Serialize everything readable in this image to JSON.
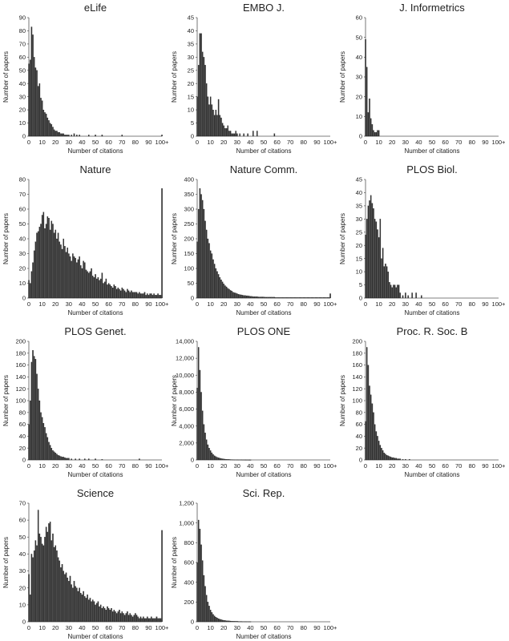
{
  "chart_data": [
    {
      "type": "bar",
      "title": "eLife",
      "xlabel": "Number of citations",
      "ylabel": "Number of papers",
      "ylim": [
        0,
        90
      ],
      "yticks": [
        "0",
        "10",
        "20",
        "30",
        "40",
        "50",
        "60",
        "70",
        "80",
        "90"
      ],
      "xticks": [
        "0",
        "10",
        "20",
        "30",
        "40",
        "50",
        "60",
        "70",
        "80",
        "90",
        "100+"
      ],
      "x": [
        0,
        1,
        2,
        3,
        4,
        5,
        6,
        7,
        8,
        9,
        10,
        11,
        12,
        13,
        14,
        15,
        16,
        17,
        18,
        19,
        20,
        21,
        22,
        23,
        24,
        25,
        26,
        27,
        28,
        29,
        30,
        32,
        34,
        36,
        38,
        45,
        50,
        55,
        70,
        100
      ],
      "values": [
        55,
        58,
        83,
        77,
        60,
        52,
        50,
        38,
        40,
        29,
        27,
        20,
        18,
        17,
        14,
        12,
        10,
        9,
        7,
        5,
        4,
        4,
        3,
        3,
        2,
        2,
        2,
        1,
        1,
        1,
        1,
        1,
        2,
        1,
        1,
        1,
        1,
        1,
        1,
        1
      ]
    },
    {
      "type": "bar",
      "title": "EMBO J.",
      "xlabel": "Number of citations",
      "ylabel": "Number of papers",
      "ylim": [
        0,
        45
      ],
      "yticks": [
        "0",
        "5",
        "10",
        "15",
        "20",
        "25",
        "30",
        "35",
        "40",
        "45"
      ],
      "xticks": [
        "0",
        "10",
        "20",
        "30",
        "40",
        "50",
        "60",
        "70",
        "80",
        "90",
        "100+"
      ],
      "x": [
        0,
        1,
        2,
        3,
        4,
        5,
        6,
        7,
        8,
        9,
        10,
        11,
        12,
        13,
        14,
        15,
        16,
        17,
        18,
        19,
        20,
        21,
        22,
        23,
        24,
        25,
        26,
        27,
        28,
        29,
        30,
        32,
        35,
        38,
        42,
        45,
        58
      ],
      "values": [
        15,
        27,
        39,
        39,
        32,
        30,
        27,
        20,
        15,
        12,
        15,
        12,
        10,
        8,
        10,
        8,
        14,
        8,
        7,
        5,
        4,
        3,
        3,
        4,
        2,
        2,
        1,
        1,
        1,
        2,
        1,
        1,
        1,
        1,
        2,
        2,
        1
      ]
    },
    {
      "type": "bar",
      "title": "J. Informetrics",
      "xlabel": "Number of citations",
      "ylabel": "Number of papers",
      "ylim": [
        0,
        60
      ],
      "yticks": [
        "0",
        "10",
        "20",
        "30",
        "40",
        "50",
        "60"
      ],
      "xticks": [
        "0",
        "10",
        "20",
        "30",
        "40",
        "50",
        "60",
        "70",
        "80",
        "90",
        "100+"
      ],
      "x": [
        0,
        1,
        2,
        3,
        4,
        5,
        6,
        7,
        8,
        9,
        10
      ],
      "values": [
        49,
        35,
        12,
        19,
        9,
        6,
        3,
        2,
        2,
        3,
        3
      ]
    },
    {
      "type": "bar",
      "title": "Nature",
      "xlabel": "Number of citations",
      "ylabel": "Number of papers",
      "ylim": [
        0,
        80
      ],
      "yticks": [
        "0",
        "10",
        "20",
        "30",
        "40",
        "50",
        "60",
        "70",
        "80"
      ],
      "xticks": [
        "0",
        "10",
        "20",
        "30",
        "40",
        "50",
        "60",
        "70",
        "80",
        "90",
        "100+"
      ],
      "x": [
        0,
        1,
        2,
        3,
        4,
        5,
        6,
        7,
        8,
        9,
        10,
        11,
        12,
        13,
        14,
        15,
        16,
        17,
        18,
        19,
        20,
        21,
        22,
        23,
        24,
        25,
        26,
        27,
        28,
        29,
        30,
        31,
        32,
        33,
        34,
        35,
        36,
        37,
        38,
        39,
        40,
        41,
        42,
        43,
        44,
        45,
        46,
        47,
        48,
        49,
        50,
        51,
        52,
        53,
        54,
        55,
        56,
        57,
        58,
        59,
        60,
        61,
        62,
        63,
        64,
        65,
        66,
        67,
        68,
        69,
        70,
        71,
        72,
        73,
        74,
        75,
        76,
        77,
        78,
        79,
        80,
        81,
        82,
        83,
        84,
        85,
        86,
        87,
        88,
        89,
        90,
        91,
        92,
        93,
        94,
        95,
        96,
        97,
        98,
        99,
        100
      ],
      "values": [
        12,
        10,
        18,
        24,
        32,
        38,
        44,
        45,
        48,
        50,
        56,
        58,
        47,
        50,
        55,
        54,
        46,
        52,
        50,
        44,
        46,
        40,
        44,
        38,
        36,
        33,
        40,
        35,
        31,
        34,
        30,
        28,
        25,
        30,
        28,
        27,
        24,
        26,
        28,
        22,
        20,
        25,
        24,
        19,
        18,
        17,
        18,
        20,
        15,
        14,
        16,
        13,
        14,
        12,
        13,
        17,
        10,
        11,
        13,
        9,
        10,
        9,
        8,
        7,
        9,
        8,
        6,
        7,
        6,
        5,
        7,
        6,
        5,
        4,
        6,
        5,
        4,
        5,
        4,
        4,
        4,
        4,
        3,
        4,
        3,
        3,
        3,
        4,
        2,
        3,
        2,
        3,
        3,
        2,
        3,
        2,
        2,
        3,
        2,
        2,
        74
      ]
    },
    {
      "type": "bar",
      "title": "Nature Comm.",
      "xlabel": "Number of citations",
      "ylabel": "Number of papers",
      "ylim": [
        0,
        400
      ],
      "yticks": [
        "0",
        "50",
        "100",
        "150",
        "200",
        "250",
        "300",
        "350",
        "400"
      ],
      "xticks": [
        "0",
        "10",
        "20",
        "30",
        "40",
        "50",
        "60",
        "70",
        "80",
        "90",
        "100+"
      ],
      "x": [
        0,
        1,
        2,
        3,
        4,
        5,
        6,
        7,
        8,
        9,
        10,
        11,
        12,
        13,
        14,
        15,
        16,
        17,
        18,
        19,
        20,
        21,
        22,
        23,
        24,
        25,
        26,
        27,
        28,
        29,
        30,
        31,
        32,
        33,
        34,
        35,
        36,
        37,
        38,
        39,
        40,
        41,
        42,
        43,
        44,
        45,
        46,
        47,
        48,
        49,
        50,
        51,
        52,
        53,
        54,
        55,
        56,
        57,
        58,
        59,
        60,
        61,
        62,
        63,
        64,
        65,
        66,
        67,
        68,
        69,
        70,
        71,
        72,
        73,
        74,
        75,
        76,
        77,
        78,
        79,
        80,
        81,
        82,
        83,
        84,
        85,
        86,
        87,
        88,
        89,
        90,
        91,
        92,
        93,
        94,
        95,
        96,
        97,
        98,
        99,
        100
      ],
      "values": [
        190,
        300,
        370,
        350,
        330,
        300,
        260,
        230,
        200,
        185,
        160,
        150,
        130,
        115,
        100,
        90,
        80,
        70,
        62,
        55,
        48,
        42,
        38,
        33,
        30,
        26,
        24,
        20,
        18,
        17,
        15,
        13,
        12,
        11,
        10,
        9,
        9,
        8,
        8,
        7,
        6,
        6,
        5,
        5,
        5,
        5,
        4,
        4,
        4,
        4,
        4,
        3,
        3,
        3,
        3,
        3,
        3,
        3,
        3,
        2,
        2,
        2,
        2,
        2,
        2,
        2,
        2,
        2,
        2,
        2,
        2,
        2,
        2,
        2,
        2,
        2,
        2,
        2,
        2,
        2,
        2,
        2,
        2,
        2,
        2,
        2,
        2,
        2,
        2,
        2,
        2,
        2,
        2,
        2,
        2,
        2,
        2,
        2,
        2,
        2,
        15
      ]
    },
    {
      "type": "bar",
      "title": "PLOS Biol.",
      "xlabel": "Number of citations",
      "ylabel": "Number of papers",
      "ylim": [
        0,
        45
      ],
      "yticks": [
        "0",
        "5",
        "10",
        "15",
        "20",
        "25",
        "30",
        "35",
        "40",
        "45"
      ],
      "xticks": [
        "0",
        "10",
        "20",
        "30",
        "40",
        "50",
        "60",
        "70",
        "80",
        "90",
        "100+"
      ],
      "x": [
        0,
        1,
        2,
        3,
        4,
        5,
        6,
        7,
        8,
        9,
        10,
        11,
        12,
        13,
        14,
        15,
        16,
        17,
        18,
        19,
        20,
        21,
        22,
        23,
        24,
        25,
        26,
        28,
        30,
        32,
        35,
        38,
        42
      ],
      "values": [
        24,
        30,
        35,
        37,
        39,
        36,
        34,
        30,
        29,
        26,
        23,
        30,
        15,
        19,
        12,
        13,
        12,
        10,
        6,
        5,
        4,
        5,
        5,
        4,
        5,
        5,
        2,
        1,
        2,
        1,
        2,
        2,
        1
      ]
    },
    {
      "type": "bar",
      "title": "PLOS Genet.",
      "xlabel": "Number of citations",
      "ylabel": "Number of papers",
      "ylim": [
        0,
        200
      ],
      "yticks": [
        "0",
        "20",
        "40",
        "60",
        "80",
        "100",
        "120",
        "140",
        "160",
        "180",
        "200"
      ],
      "xticks": [
        "0",
        "10",
        "20",
        "30",
        "40",
        "50",
        "60",
        "70",
        "80",
        "90",
        "100+"
      ],
      "x": [
        0,
        1,
        2,
        3,
        4,
        5,
        6,
        7,
        8,
        9,
        10,
        11,
        12,
        13,
        14,
        15,
        16,
        17,
        18,
        19,
        20,
        21,
        22,
        23,
        24,
        25,
        26,
        27,
        28,
        29,
        30,
        32,
        35,
        38,
        42,
        45,
        50,
        55,
        83
      ],
      "values": [
        60,
        100,
        165,
        185,
        175,
        170,
        145,
        120,
        100,
        80,
        72,
        62,
        55,
        45,
        38,
        30,
        25,
        20,
        16,
        14,
        12,
        10,
        8,
        7,
        6,
        5,
        5,
        4,
        3,
        3,
        3,
        2,
        2,
        2,
        2,
        2,
        2,
        1,
        2
      ]
    },
    {
      "type": "bar",
      "title": "PLOS ONE",
      "xlabel": "Number of citations",
      "ylabel": "Number of papers",
      "ylim": [
        0,
        14000
      ],
      "yticks": [
        "0",
        "2,000",
        "4,000",
        "6,000",
        "8,000",
        "10,000",
        "12,000",
        "14,000"
      ],
      "xticks": [
        "0",
        "10",
        "20",
        "30",
        "40",
        "50",
        "60",
        "70",
        "80",
        "90",
        "100+"
      ],
      "x": [
        0,
        1,
        2,
        3,
        4,
        5,
        6,
        7,
        8,
        9,
        10,
        11,
        12,
        13,
        14,
        15,
        16,
        17,
        18,
        19,
        20,
        21,
        22,
        23,
        24,
        25,
        26,
        27,
        28,
        29,
        30,
        31,
        32,
        33,
        34,
        35,
        36,
        37,
        38,
        39,
        40
      ],
      "values": [
        8500,
        13300,
        10600,
        8000,
        5800,
        4200,
        3200,
        2400,
        1800,
        1400,
        1100,
        850,
        650,
        500,
        400,
        320,
        260,
        210,
        170,
        140,
        115,
        95,
        80,
        70,
        60,
        50,
        45,
        40,
        35,
        30,
        28,
        25,
        22,
        20,
        18,
        16,
        15,
        14,
        12,
        11,
        10
      ]
    },
    {
      "type": "bar",
      "title": "Proc. R. Soc. B",
      "xlabel": "Number of citations",
      "ylabel": "Number of papers",
      "ylim": [
        0,
        200
      ],
      "yticks": [
        "0",
        "20",
        "40",
        "60",
        "80",
        "100",
        "120",
        "140",
        "160",
        "180",
        "200"
      ],
      "xticks": [
        "0",
        "10",
        "20",
        "30",
        "40",
        "50",
        "60",
        "70",
        "80",
        "90",
        "100+"
      ],
      "x": [
        0,
        1,
        2,
        3,
        4,
        5,
        6,
        7,
        8,
        9,
        10,
        11,
        12,
        13,
        14,
        15,
        16,
        17,
        18,
        19,
        20,
        21,
        22,
        23,
        24,
        25,
        26,
        28,
        30,
        33
      ],
      "values": [
        65,
        190,
        160,
        125,
        110,
        95,
        80,
        60,
        48,
        40,
        32,
        25,
        20,
        16,
        12,
        10,
        8,
        7,
        6,
        5,
        4,
        4,
        3,
        3,
        2,
        2,
        2,
        1,
        1,
        1
      ]
    },
    {
      "type": "bar",
      "title": "Science",
      "xlabel": "Number of citations",
      "ylabel": "Number of papers",
      "ylim": [
        0,
        70
      ],
      "yticks": [
        "0",
        "10",
        "20",
        "30",
        "40",
        "50",
        "60",
        "70"
      ],
      "xticks": [
        "0",
        "10",
        "20",
        "30",
        "40",
        "50",
        "60",
        "70",
        "80",
        "90",
        "100+"
      ],
      "x": [
        0,
        1,
        2,
        3,
        4,
        5,
        6,
        7,
        8,
        9,
        10,
        11,
        12,
        13,
        14,
        15,
        16,
        17,
        18,
        19,
        20,
        21,
        22,
        23,
        24,
        25,
        26,
        27,
        28,
        29,
        30,
        31,
        32,
        33,
        34,
        35,
        36,
        37,
        38,
        39,
        40,
        41,
        42,
        43,
        44,
        45,
        46,
        47,
        48,
        49,
        50,
        51,
        52,
        53,
        54,
        55,
        56,
        57,
        58,
        59,
        60,
        61,
        62,
        63,
        64,
        65,
        66,
        67,
        68,
        69,
        70,
        71,
        72,
        73,
        74,
        75,
        76,
        77,
        78,
        79,
        80,
        81,
        82,
        83,
        84,
        85,
        86,
        87,
        88,
        89,
        90,
        91,
        92,
        93,
        94,
        95,
        96,
        97,
        98,
        99,
        100
      ],
      "values": [
        28,
        16,
        40,
        38,
        42,
        48,
        45,
        66,
        52,
        50,
        46,
        45,
        50,
        56,
        53,
        58,
        59,
        48,
        52,
        44,
        45,
        42,
        38,
        36,
        32,
        34,
        30,
        28,
        29,
        26,
        24,
        27,
        22,
        20,
        24,
        21,
        20,
        18,
        20,
        17,
        16,
        18,
        15,
        14,
        16,
        13,
        14,
        12,
        13,
        12,
        10,
        11,
        12,
        9,
        10,
        8,
        9,
        8,
        7,
        9,
        8,
        7,
        8,
        6,
        7,
        6,
        5,
        6,
        7,
        5,
        6,
        5,
        4,
        5,
        6,
        4,
        5,
        4,
        3,
        4,
        5,
        4,
        3,
        2,
        3,
        2,
        3,
        2,
        2,
        3,
        2,
        2,
        3,
        2,
        2,
        2,
        3,
        2,
        2,
        2,
        54
      ]
    },
    {
      "type": "bar",
      "title": "Sci. Rep.",
      "xlabel": "Number of citations",
      "ylabel": "Number of papers",
      "ylim": [
        0,
        1200
      ],
      "yticks": [
        "0",
        "200",
        "400",
        "600",
        "800",
        "1,000",
        "1,200"
      ],
      "xticks": [
        "0",
        "10",
        "20",
        "30",
        "40",
        "50",
        "60",
        "70",
        "80",
        "90",
        "100+"
      ],
      "x": [
        0,
        1,
        2,
        3,
        4,
        5,
        6,
        7,
        8,
        9,
        10,
        11,
        12,
        13,
        14,
        15,
        16,
        17,
        18,
        19,
        20,
        21,
        22,
        23,
        24,
        25,
        26,
        27,
        28,
        29,
        30,
        31,
        32,
        33,
        34,
        35,
        36,
        37,
        38,
        39,
        40
      ],
      "values": [
        600,
        1030,
        940,
        780,
        620,
        470,
        360,
        270,
        200,
        160,
        120,
        95,
        75,
        60,
        48,
        40,
        32,
        26,
        22,
        18,
        15,
        13,
        11,
        10,
        9,
        8,
        7,
        6,
        6,
        5,
        5,
        4,
        4,
        4,
        3,
        3,
        3,
        3,
        2,
        2,
        2
      ]
    }
  ]
}
